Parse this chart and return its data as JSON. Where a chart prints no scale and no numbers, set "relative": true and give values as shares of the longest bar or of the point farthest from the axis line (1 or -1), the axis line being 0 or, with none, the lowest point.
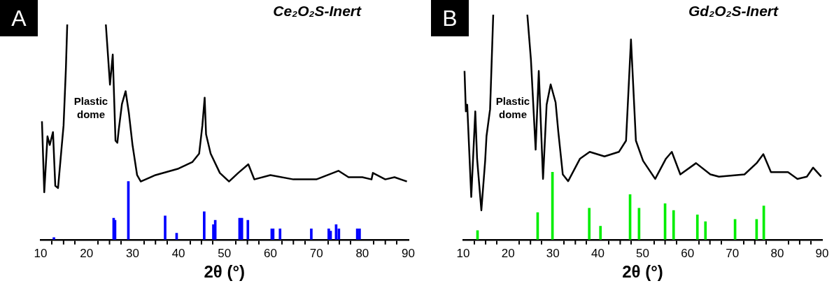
{
  "chart_data": [
    {
      "type": "line",
      "title": "Ce₂O₂S-Inert",
      "xlabel": "2θ (°)",
      "relative": true,
      "xlim": [
        10,
        90
      ],
      "xticks": [
        10,
        {
          "value": 15,
          "label": null
        },
        20,
        {
          "value": 25,
          "label": null
        },
        30,
        {
          "value": 35,
          "label": null
        },
        40,
        {
          "value": 45,
          "label": null
        },
        50,
        {
          "value": 55,
          "label": null
        },
        60,
        {
          "value": 65,
          "label": null
        },
        70,
        {
          "value": 75,
          "label": null
        },
        80,
        {
          "value": 85,
          "label": null
        },
        90
      ],
      "annotations": [
        "A",
        "Plastic dome"
      ],
      "series": [
        {
          "color": "#000000",
          "x": [
            10.3,
            10.8,
            11.5,
            12,
            12.7,
            13.2,
            13.8,
            14.5,
            15,
            15.5,
            15.8,
            20,
            24.2,
            25.1,
            25.7,
            26.3,
            26.7,
            27,
            27.7,
            28.5,
            29.2,
            30,
            31,
            31.8,
            35,
            40,
            43,
            44.5,
            45.2,
            45.7,
            46,
            47,
            49,
            51,
            53,
            55.2,
            56.5,
            60,
            65,
            70,
            74.8,
            77,
            80,
            82,
            82.3,
            85,
            87,
            89.7
          ],
          "values": [
            0.55,
            0.22,
            0.48,
            0.44,
            0.5,
            0.25,
            0.24,
            0.41,
            0.53,
            0.79,
            1,
            null,
            1,
            0.72,
            0.86,
            0.46,
            0.45,
            0.51,
            0.63,
            0.69,
            0.59,
            0.44,
            0.3,
            0.27,
            0.3,
            0.33,
            0.36,
            0.4,
            0.53,
            0.66,
            0.49,
            0.4,
            0.31,
            0.27,
            0.31,
            0.35,
            0.28,
            0.3,
            0.28,
            0.28,
            0.32,
            0.29,
            0.29,
            0.28,
            0.31,
            0.28,
            0.29,
            0.27
          ]
        },
        {
          "type": "bar",
          "color": "#0000ff",
          "x": [
            12.9,
            25.9,
            26.2,
            29.1,
            37.1,
            39.6,
            45.6,
            47.6,
            48,
            53.3,
            53.8,
            55.1,
            60.3,
            60.6,
            62.1,
            68.9,
            72.7,
            73.1,
            74.3,
            74.9,
            78.9,
            79.4
          ],
          "values": [
            0.01,
            0.1,
            0.09,
            0.27,
            0.11,
            0.03,
            0.13,
            0.07,
            0.09,
            0.1,
            0.1,
            0.09,
            0.05,
            0.05,
            0.05,
            0.05,
            0.05,
            0.04,
            0.07,
            0.05,
            0.05,
            0.05
          ]
        }
      ]
    },
    {
      "type": "line",
      "title": "Gd₂O₂S-Inert",
      "xlabel": "2θ (°)",
      "relative": true,
      "xlim": [
        10,
        90
      ],
      "xticks": [
        10,
        {
          "value": 15,
          "label": null
        },
        20,
        {
          "value": 25,
          "label": null
        },
        30,
        {
          "value": 35,
          "label": null
        },
        40,
        {
          "value": 45,
          "label": null
        },
        50,
        {
          "value": 55,
          "label": null
        },
        60,
        {
          "value": 65,
          "label": null
        },
        70,
        {
          "value": 75,
          "label": null
        },
        80,
        {
          "value": 85,
          "label": null
        },
        90
      ],
      "annotations": [
        "B",
        "Plastic dome"
      ],
      "series": [
        {
          "color": "#000000",
          "x": [
            10.3,
            10.6,
            10.9,
            11.8,
            12.7,
            13.1,
            14.05,
            14.9,
            15.2,
            16,
            16.7,
            20,
            24.3,
            25.1,
            26.15,
            26.85,
            27.8,
            28.6,
            29.5,
            30.6,
            31.2,
            32.2,
            33.4,
            36.05,
            38.2,
            41.5,
            44.7,
            46.3,
            47.4,
            48.5,
            50.1,
            52.8,
            55.2,
            56.5,
            58.4,
            61.9,
            65.1,
            67,
            72.7,
            75.4,
            76.9,
            78.6,
            82.4,
            84.5,
            86.6,
            88,
            89.8
          ],
          "values": [
            0.75,
            0.57,
            0.6,
            0.19,
            0.57,
            0.36,
            0.13,
            0.35,
            0.46,
            0.58,
            1,
            null,
            1,
            0.8,
            0.4,
            0.75,
            0.27,
            0.6,
            0.69,
            0.61,
            0.48,
            0.29,
            0.26,
            0.36,
            0.39,
            0.37,
            0.39,
            0.44,
            0.89,
            0.44,
            0.35,
            0.27,
            0.36,
            0.39,
            0.29,
            0.34,
            0.29,
            0.28,
            0.29,
            0.34,
            0.38,
            0.3,
            0.3,
            0.27,
            0.28,
            0.32,
            0.28
          ]
        },
        {
          "type": "bar",
          "color": "#00ee00",
          "x": [
            13.2,
            26.6,
            29.9,
            38.1,
            40.6,
            47.2,
            49.2,
            55,
            56.9,
            62.2,
            64,
            70.6,
            75.4,
            77
          ],
          "values": [
            0.04,
            0.12,
            0.3,
            0.14,
            0.06,
            0.2,
            0.14,
            0.16,
            0.13,
            0.11,
            0.08,
            0.09,
            0.09,
            0.15
          ]
        }
      ]
    }
  ]
}
